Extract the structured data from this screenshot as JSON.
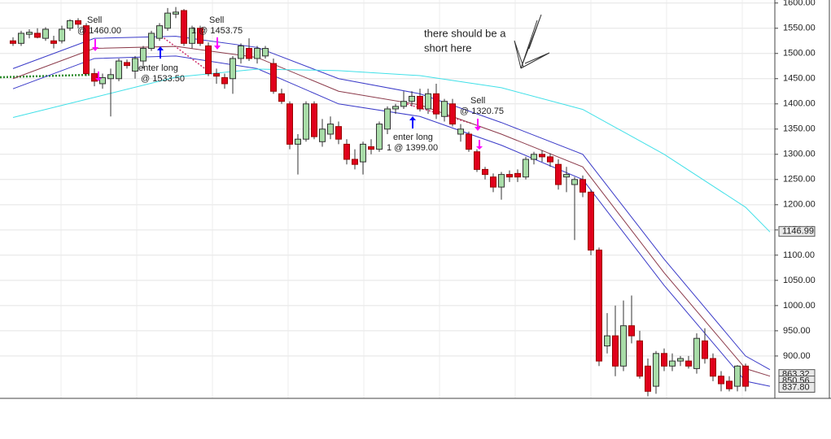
{
  "chart_data": {
    "type": "candlestick",
    "ylim": [
      816,
      1606
    ],
    "yticks": [
      {
        "value": 1600,
        "label": "1600.00"
      },
      {
        "value": 1550,
        "label": "1550.00"
      },
      {
        "value": 1500,
        "label": "1500.00"
      },
      {
        "value": 1450,
        "label": "1450.00"
      },
      {
        "value": 1400,
        "label": "1400.00"
      },
      {
        "value": 1350,
        "label": "1350.00"
      },
      {
        "value": 1300,
        "label": "1300.00"
      },
      {
        "value": 1250,
        "label": "1250.00"
      },
      {
        "value": 1200,
        "label": "1200.00"
      },
      {
        "value": 1150,
        "label": "1150.00"
      },
      {
        "value": 1100,
        "label": "1100.00"
      },
      {
        "value": 1050,
        "label": "1050.00"
      },
      {
        "value": 1000,
        "label": "1000.00"
      },
      {
        "value": 950,
        "label": "950.00"
      },
      {
        "value": 900,
        "label": "900.00"
      }
    ],
    "grid": true,
    "up_color": "#a8dca8",
    "down_color": "#e0001b",
    "candles": [
      [
        1525,
        1532,
        1515,
        1520
      ],
      [
        1520,
        1545,
        1515,
        1540
      ],
      [
        1538,
        1548,
        1530,
        1542
      ],
      [
        1540,
        1550,
        1530,
        1532
      ],
      [
        1530,
        1552,
        1525,
        1548
      ],
      [
        1525,
        1535,
        1510,
        1520
      ],
      [
        1525,
        1555,
        1520,
        1548
      ],
      [
        1550,
        1568,
        1545,
        1565
      ],
      [
        1565,
        1570,
        1550,
        1558
      ],
      [
        1555,
        1560,
        1455,
        1460
      ],
      [
        1460,
        1470,
        1435,
        1445
      ],
      [
        1440,
        1460,
        1430,
        1452
      ],
      [
        1450,
        1470,
        1375,
        1458
      ],
      [
        1450,
        1490,
        1445,
        1485
      ],
      [
        1482,
        1488,
        1470,
        1476
      ],
      [
        1465,
        1495,
        1450,
        1490
      ],
      [
        1485,
        1515,
        1470,
        1510
      ],
      [
        1510,
        1545,
        1505,
        1540
      ],
      [
        1530,
        1560,
        1525,
        1555
      ],
      [
        1550,
        1590,
        1545,
        1580
      ],
      [
        1578,
        1592,
        1570,
        1582
      ],
      [
        1585,
        1588,
        1515,
        1520
      ],
      [
        1520,
        1555,
        1510,
        1550
      ],
      [
        1550,
        1555,
        1515,
        1520
      ],
      [
        1515,
        1522,
        1455,
        1460
      ],
      [
        1460,
        1470,
        1440,
        1455
      ],
      [
        1452,
        1460,
        1430,
        1440
      ],
      [
        1450,
        1495,
        1420,
        1490
      ],
      [
        1490,
        1520,
        1480,
        1515
      ],
      [
        1510,
        1530,
        1485,
        1490
      ],
      [
        1490,
        1515,
        1480,
        1510
      ],
      [
        1495,
        1515,
        1490,
        1510
      ],
      [
        1480,
        1490,
        1420,
        1425
      ],
      [
        1420,
        1430,
        1400,
        1405
      ],
      [
        1400,
        1405,
        1310,
        1320
      ],
      [
        1320,
        1340,
        1260,
        1330
      ],
      [
        1330,
        1405,
        1325,
        1400
      ],
      [
        1400,
        1405,
        1330,
        1335
      ],
      [
        1325,
        1370,
        1315,
        1350
      ],
      [
        1340,
        1375,
        1330,
        1360
      ],
      [
        1355,
        1365,
        1320,
        1330
      ],
      [
        1320,
        1330,
        1280,
        1290
      ],
      [
        1290,
        1310,
        1270,
        1280
      ],
      [
        1285,
        1325,
        1260,
        1320
      ],
      [
        1315,
        1330,
        1300,
        1310
      ],
      [
        1310,
        1365,
        1305,
        1360
      ],
      [
        1350,
        1395,
        1340,
        1390
      ],
      [
        1390,
        1400,
        1380,
        1395
      ],
      [
        1395,
        1425,
        1390,
        1405
      ],
      [
        1405,
        1425,
        1395,
        1415
      ],
      [
        1415,
        1430,
        1385,
        1390
      ],
      [
        1390,
        1430,
        1380,
        1420
      ],
      [
        1420,
        1440,
        1370,
        1380
      ],
      [
        1375,
        1410,
        1365,
        1405
      ],
      [
        1400,
        1410,
        1355,
        1360
      ],
      [
        1340,
        1360,
        1325,
        1350
      ],
      [
        1340,
        1345,
        1305,
        1310
      ],
      [
        1305,
        1310,
        1265,
        1270
      ],
      [
        1270,
        1275,
        1250,
        1260
      ],
      [
        1255,
        1262,
        1225,
        1235
      ],
      [
        1235,
        1265,
        1210,
        1260
      ],
      [
        1260,
        1268,
        1245,
        1255
      ],
      [
        1262,
        1270,
        1245,
        1255
      ],
      [
        1255,
        1295,
        1250,
        1290
      ],
      [
        1290,
        1305,
        1280,
        1300
      ],
      [
        1300,
        1308,
        1285,
        1295
      ],
      [
        1295,
        1302,
        1275,
        1285
      ],
      [
        1280,
        1290,
        1230,
        1240
      ],
      [
        1255,
        1275,
        1225,
        1260
      ],
      [
        1240,
        1255,
        1130,
        1250
      ],
      [
        1250,
        1258,
        1215,
        1225
      ],
      [
        1225,
        1230,
        1100,
        1110
      ],
      [
        1110,
        1115,
        880,
        890
      ],
      [
        920,
        985,
        905,
        940
      ],
      [
        940,
        1000,
        860,
        880
      ],
      [
        880,
        1010,
        870,
        960
      ],
      [
        960,
        1020,
        925,
        940
      ],
      [
        930,
        950,
        855,
        860
      ],
      [
        880,
        895,
        820,
        830
      ],
      [
        840,
        910,
        825,
        905
      ],
      [
        905,
        915,
        870,
        880
      ],
      [
        880,
        905,
        870,
        890
      ],
      [
        890,
        900,
        880,
        895
      ],
      [
        890,
        900,
        875,
        880
      ],
      [
        875,
        945,
        865,
        935
      ],
      [
        930,
        955,
        885,
        895
      ],
      [
        895,
        905,
        850,
        860
      ],
      [
        860,
        870,
        830,
        845
      ],
      [
        850,
        860,
        830,
        835
      ],
      [
        840,
        882,
        830,
        880
      ],
      [
        880,
        885,
        830,
        840
      ]
    ],
    "x": [
      0,
      10,
      20,
      30,
      40,
      50,
      60,
      70,
      80,
      90,
      93
    ],
    "series": [
      {
        "color": "#3a3ac8",
        "values": [
          1470,
          1530,
          1534,
          1512,
          1450,
          1420,
          1363,
          1300,
          1092,
          900,
          873
        ]
      },
      {
        "color": "#8b3a4a",
        "values": [
          1450,
          1510,
          1514,
          1492,
          1425,
          1398,
          1340,
          1275,
          1065,
          875,
          860
        ]
      },
      {
        "color": "#3a3ac8",
        "values": [
          1430,
          1490,
          1495,
          1470,
          1400,
          1375,
          1318,
          1250,
          1040,
          850,
          840
        ]
      },
      {
        "color": "#40e0e8",
        "values": [
          1373,
          1413,
          1453,
          1469,
          1466,
          1456,
          1432,
          1389,
          1300,
          1195,
          1146
        ]
      }
    ],
    "price_markers": [
      {
        "value": 1146.99,
        "label": "1146.99"
      },
      {
        "value": 863.32,
        "label": "863.32"
      },
      {
        "value": 850.56,
        "label": "850.56"
      },
      {
        "value": 837.8,
        "label": "837.80"
      }
    ],
    "annotations": [
      "Sell",
      "@ 1460.00",
      "Sell",
      "1 @ 1453.75",
      "enter long",
      "@ 1533.50",
      "enter long",
      "1 @ 1399.00",
      "Sell",
      "@ 1320.75"
    ],
    "note": [
      "there should be a",
      "short here"
    ]
  }
}
